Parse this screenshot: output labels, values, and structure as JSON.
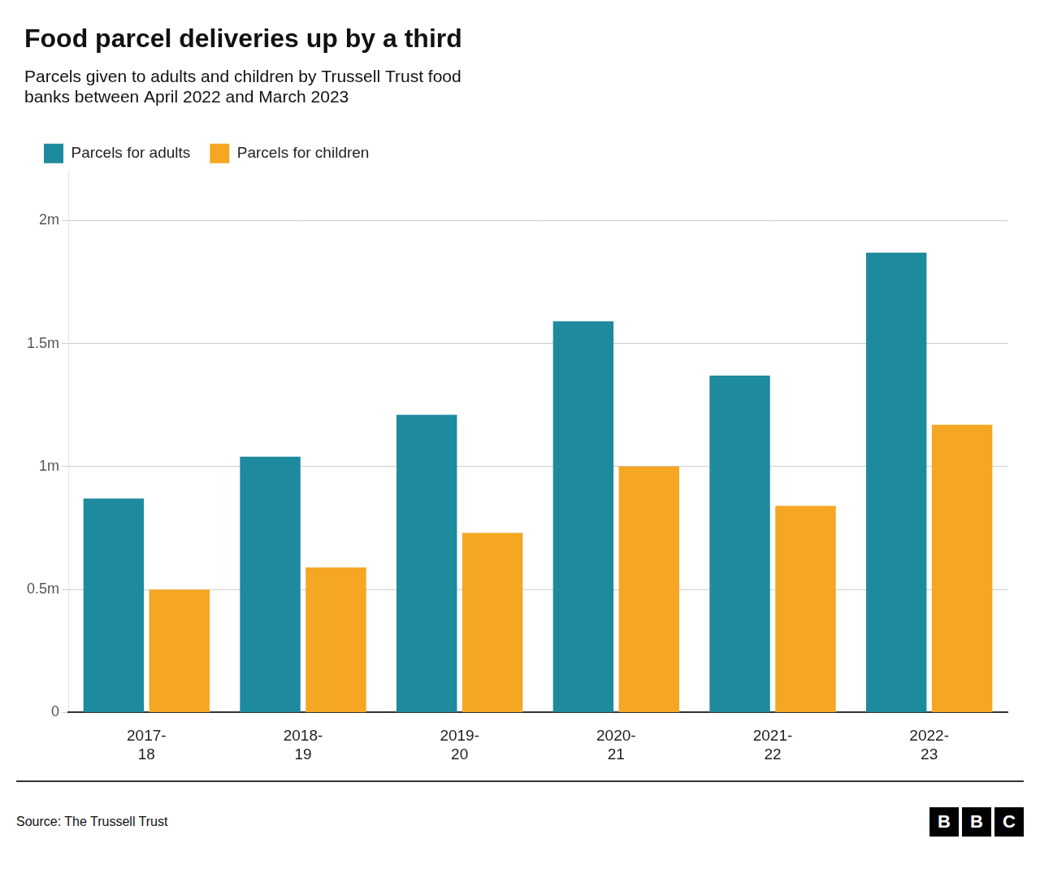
{
  "chart_data": {
    "type": "bar",
    "title": "Food parcel deliveries up by a third",
    "subtitle": "Parcels given to adults and children by Trussell Trust food\nbanks between April 2022 and March 2023",
    "source": "Source: The Trussell Trust",
    "annotations": [
      "BBC"
    ],
    "categories": [
      "2017-\n18",
      "2018-\n19",
      "2019-\n20",
      "2020-\n21",
      "2021-\n22",
      "2022-\n23"
    ],
    "series": [
      {
        "name": "Parcels for adults",
        "color": "#1e8a9e",
        "values": [
          870000,
          1040000,
          1210000,
          1590000,
          1370000,
          1870000
        ]
      },
      {
        "name": "Parcels for children",
        "color": "#f5a623",
        "values": [
          500000,
          590000,
          730000,
          1000000,
          840000,
          1170000
        ]
      }
    ],
    "ylim": [
      0,
      2200000
    ],
    "yticks": [
      0,
      {
        "value": 500000,
        "label": "0.5m"
      },
      {
        "value": 1000000,
        "label": "1m"
      },
      {
        "value": 1500000,
        "label": "1.5m"
      },
      {
        "value": 2000000,
        "label": "2m"
      }
    ],
    "grid": true,
    "legend": "top-left"
  }
}
